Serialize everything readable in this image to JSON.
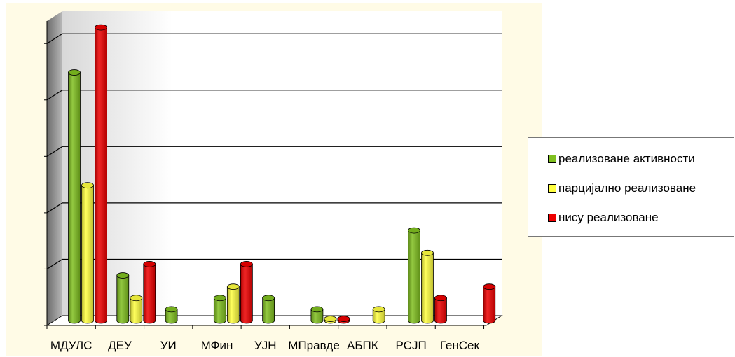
{
  "chart_data": {
    "type": "bar",
    "categories": [
      "МДУЛС",
      "ДЕУ",
      "УИ",
      "МФин",
      "УЈН",
      "МПравде",
      "АБПК",
      "РСЈП",
      "ГенСек"
    ],
    "series": [
      {
        "name": "реализоване активности",
        "color": "#80c020",
        "values": [
          44,
          8,
          2,
          4,
          4,
          2,
          0,
          16,
          0
        ]
      },
      {
        "name": "парцијално реализоване",
        "color": "#ffff40",
        "values": [
          24,
          4,
          0,
          6,
          0,
          0.3,
          2,
          12,
          0
        ]
      },
      {
        "name": "нису реализоване",
        "color": "#ee0000",
        "values": [
          52,
          10,
          0,
          10,
          0,
          0.3,
          0,
          4,
          6
        ]
      }
    ],
    "ylim": [
      0,
      54
    ],
    "y_gridlines": [
      10,
      20,
      30,
      40,
      50
    ],
    "grid": true,
    "legend_position": "right",
    "title": "",
    "xlabel": "",
    "ylabel": ""
  }
}
